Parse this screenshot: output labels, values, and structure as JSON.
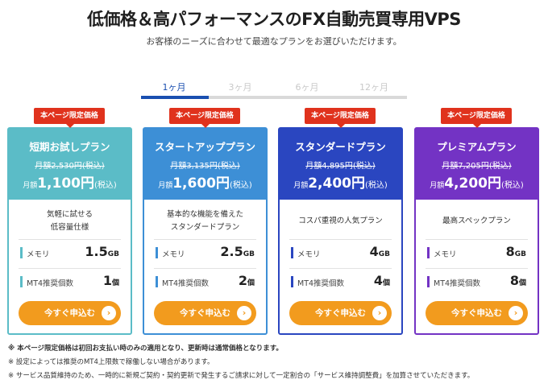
{
  "header": {
    "title": "低価格＆高パフォーマンスのFX自動売買専用VPS",
    "subtitle": "お客様のニーズに合わせて最適なプランをお選びいただけます。"
  },
  "tabs": [
    {
      "label": "1ヶ月",
      "active": true
    },
    {
      "label": "3ヶ月",
      "active": false
    },
    {
      "label": "6ヶ月",
      "active": false
    },
    {
      "label": "12ヶ月",
      "active": false
    }
  ],
  "badge_label": "本ページ限定価格",
  "price_label": "月額",
  "tax_label": "(税込)",
  "cta_label": "今すぐ申込む",
  "cta_icon": "chevron-right-icon",
  "spec_labels": {
    "memory": "メモリ",
    "mt4": "MT4推奨個数"
  },
  "plans": [
    {
      "name": "短期お試しプラン",
      "original_price": "月額2,530円(税込)",
      "price": "1,100円",
      "desc_line1": "気軽に試せる",
      "desc_line2": "低容量仕様",
      "memory_value": "1.5",
      "memory_unit": "GB",
      "mt4_value": "1",
      "mt4_unit": "個",
      "color": "#5bbcc7"
    },
    {
      "name": "スタートアッププラン",
      "original_price": "月額3,135円(税込)",
      "price": "1,600円",
      "desc_line1": "基本的な機能を備えた",
      "desc_line2": "スタンダードプラン",
      "memory_value": "2.5",
      "memory_unit": "GB",
      "mt4_value": "2",
      "mt4_unit": "個",
      "color": "#3d8fd6"
    },
    {
      "name": "スタンダードプラン",
      "original_price": "月額4,895円(税込)",
      "price": "2,400円",
      "desc_line1": "コスパ重視の人気プラン",
      "desc_line2": "",
      "memory_value": "4",
      "memory_unit": "GB",
      "mt4_value": "4",
      "mt4_unit": "個",
      "color": "#2a46c0"
    },
    {
      "name": "プレミアムプラン",
      "original_price": "月額7,205円(税込)",
      "price": "4,200円",
      "desc_line1": "最高スペックプラン",
      "desc_line2": "",
      "memory_value": "8",
      "memory_unit": "GB",
      "mt4_value": "8",
      "mt4_unit": "個",
      "color": "#7333c4"
    }
  ],
  "notes": [
    "※ 本ページ限定価格は初回お支払い時のみの適用となり、更新時は通常価格となります。",
    "※ 設定によっては推奨のMT4上限数で稼働しない場合があります。",
    "※ サービス品質維持のため、一時的に新規ご契約・契約更新で発生するご請求に対して一定割合の「サービス維持調整費」を加算させていただきます。"
  ]
}
